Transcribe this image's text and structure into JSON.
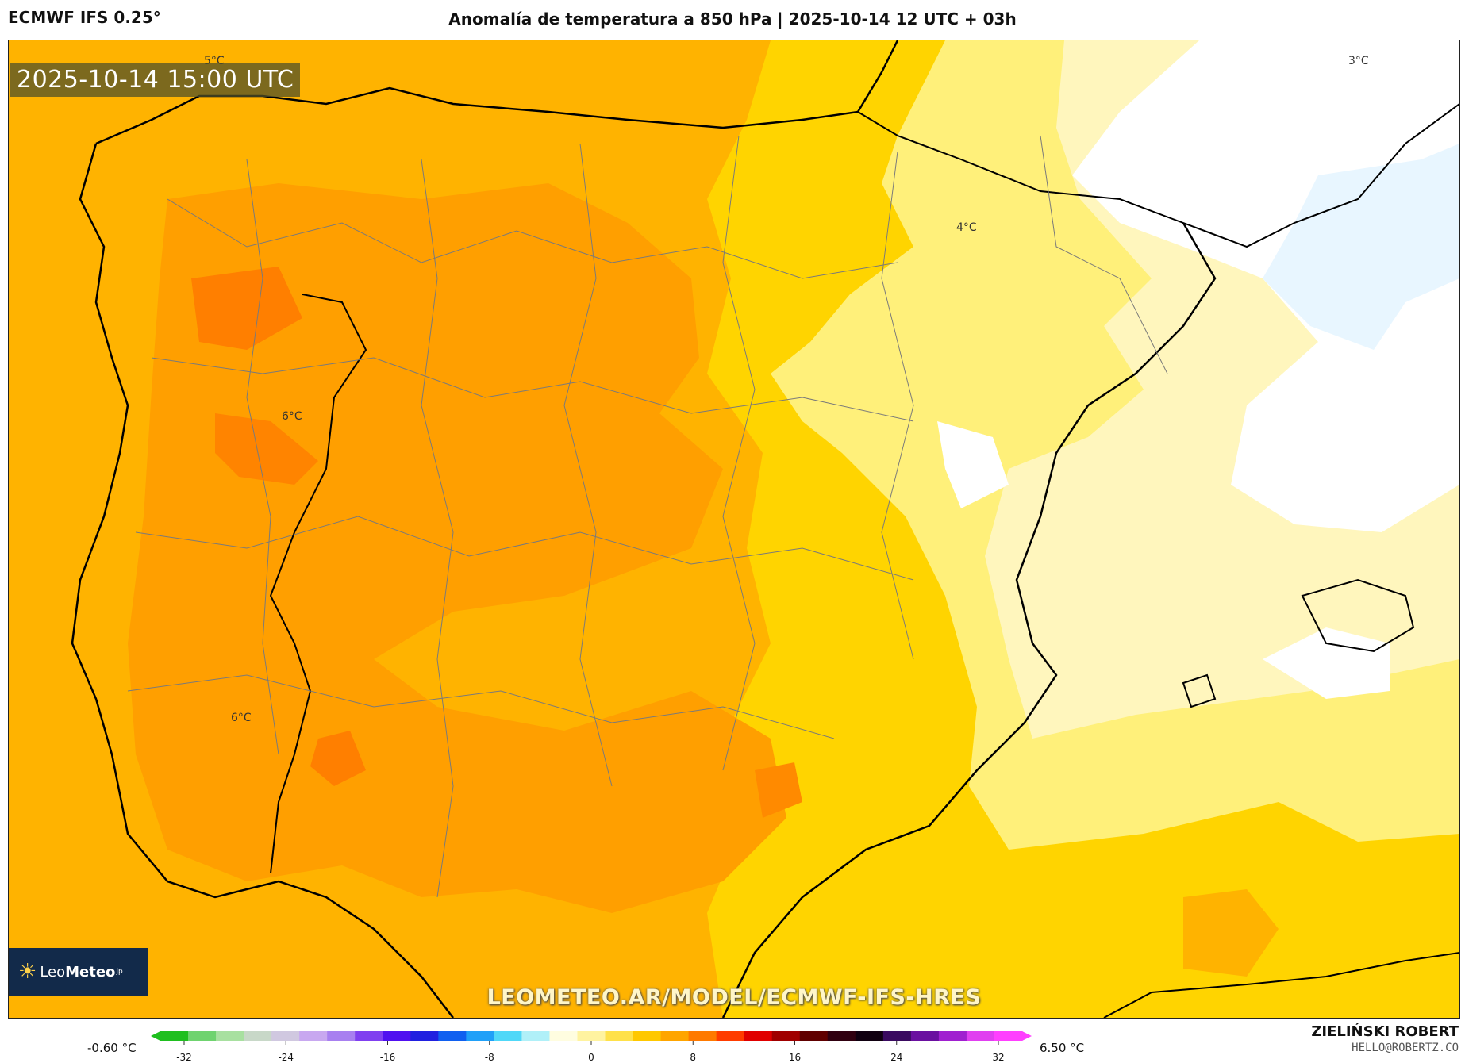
{
  "header": {
    "model": "ECMWF IFS 0.25°",
    "title": "Anomalía de temperatura a 850 hPa | 2025-10-14 12 UTC + 03h"
  },
  "map": {
    "valid_time": "2025-10-14 15:00 UTC",
    "url": "LEOMETEO.AR/MODEL/ECMWF-IFS-HRES",
    "logo": {
      "icon": "sun-icon",
      "text_a": "Leo",
      "text_b": "Meteo",
      "suffix": "jp"
    },
    "isotherm_labels": [
      "5°C",
      "3°C",
      "4°C",
      "6°C",
      "6°C"
    ]
  },
  "colorbar": {
    "min_label": "-0.60 °C",
    "max_label": "6.50 °C",
    "ticks": [
      "-32",
      "-24",
      "-16",
      "-8",
      "0",
      "8",
      "16",
      "24",
      "32"
    ],
    "palette": [
      "#1fbf1f",
      "#6fd36f",
      "#a8e0a0",
      "#c8d8c8",
      "#d0c8e0",
      "#c8a8f0",
      "#a880f0",
      "#8040f0",
      "#5010f0",
      "#2020e0",
      "#1060f0",
      "#20a0f8",
      "#50d8f8",
      "#b0f0f8",
      "#fffde0",
      "#fff3a0",
      "#ffe14a",
      "#ffc800",
      "#ffa500",
      "#ff7a00",
      "#ff3c00",
      "#e00000",
      "#a00000",
      "#600000",
      "#300010",
      "#100010",
      "#3a0a60",
      "#6a10a0",
      "#a020d0",
      "#e040f0",
      "#ff40ff"
    ]
  },
  "credit": {
    "name": "ZIELIŃSKI ROBERT",
    "email": "HELLO@ROBERTZ.CO"
  }
}
